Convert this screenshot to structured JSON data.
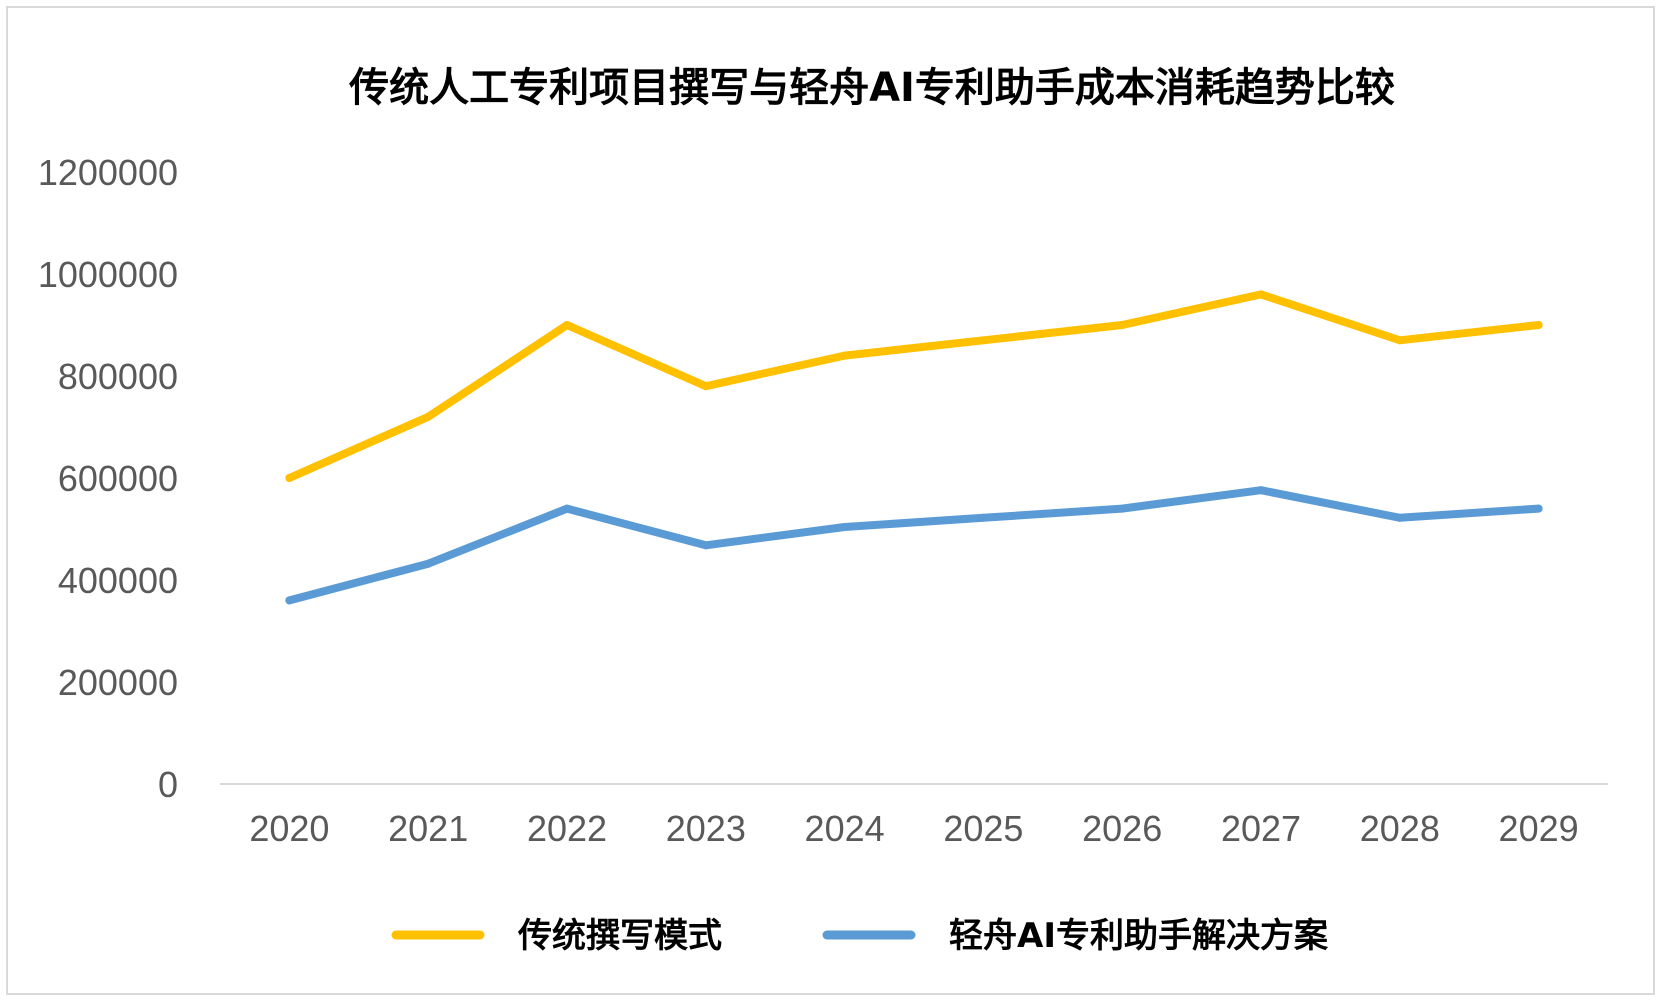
{
  "chart_data": {
    "type": "line",
    "title": "传统人工专利项目撰写与轻舟AI专利助手成本消耗趋势比较",
    "xlabel": "",
    "ylabel": "",
    "categories": [
      "2020",
      "2021",
      "2022",
      "2023",
      "2024",
      "2025",
      "2026",
      "2027",
      "2028",
      "2029"
    ],
    "ylim": [
      0,
      1200000
    ],
    "yticks": [
      0,
      200000,
      400000,
      600000,
      800000,
      1000000,
      1200000
    ],
    "grid": false,
    "legend_position": "bottom",
    "series": [
      {
        "name": "传统撰写模式",
        "color": "#FFC000",
        "values": [
          600000,
          720000,
          900000,
          780000,
          840000,
          870000,
          900000,
          960000,
          870000,
          900000
        ]
      },
      {
        "name": "轻舟AI专利助手解决方案",
        "color": "#5B9BD5",
        "values": [
          360000,
          432000,
          540000,
          468000,
          504000,
          522000,
          540000,
          576000,
          522000,
          540000
        ]
      }
    ]
  }
}
